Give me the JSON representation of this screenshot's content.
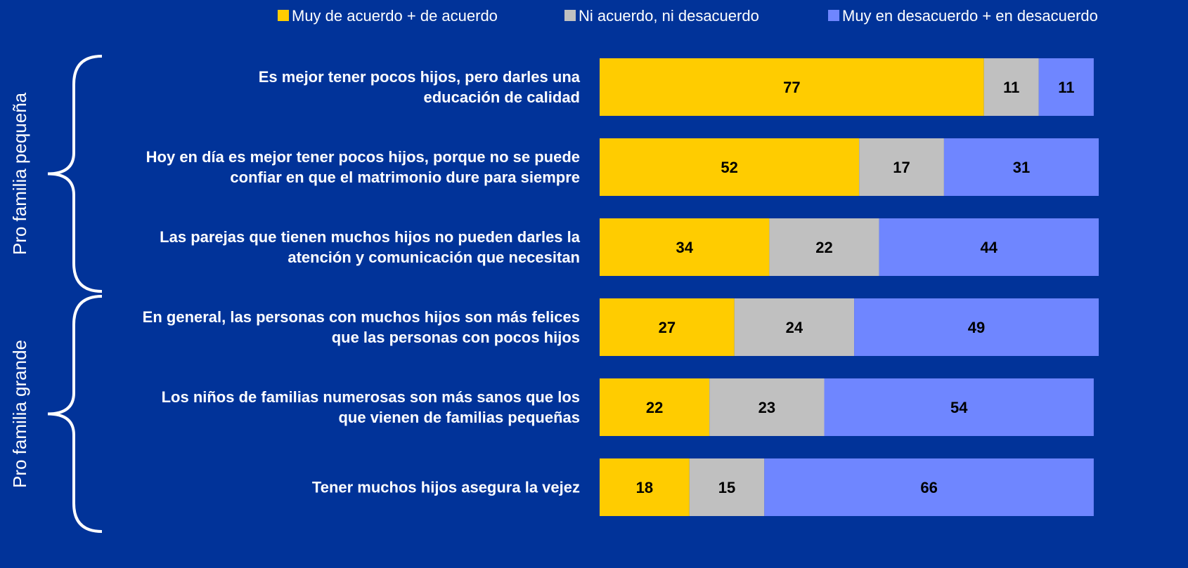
{
  "chart_data": {
    "type": "stacked_bar_horizontal",
    "categories": [
      "Es mejor tener pocos hijos, pero darles una educación de calidad",
      "Hoy en día es mejor tener pocos hijos, porque no se puede confiar en que el matrimonio dure para siempre",
      "Las parejas que tienen muchos hijos no pueden darles la atención y comunicación que necesitan",
      "En general, las personas con muchos hijos son más felices que las personas con pocos hijos",
      "Los niños de familias numerosas son más sanos que los que vienen de familias pequeñas",
      "Tener muchos hijos asegura la vejez"
    ],
    "series": [
      {
        "name": "Muy de acuerdo + de acuerdo",
        "color": "#ffcc00",
        "values": [
          77,
          52,
          34,
          27,
          22,
          18
        ]
      },
      {
        "name": "Ni acuerdo, ni desacuerdo",
        "color": "#c0c0c0",
        "values": [
          11,
          17,
          22,
          24,
          23,
          15
        ]
      },
      {
        "name": "Muy en desacuerdo + en desacuerdo",
        "color": "#6f86ff",
        "values": [
          11,
          31,
          44,
          49,
          54,
          66
        ]
      }
    ],
    "annotations": [
      "Pro familia pequeña",
      "Pro familia grande"
    ],
    "xlim": [
      0,
      100
    ]
  }
}
